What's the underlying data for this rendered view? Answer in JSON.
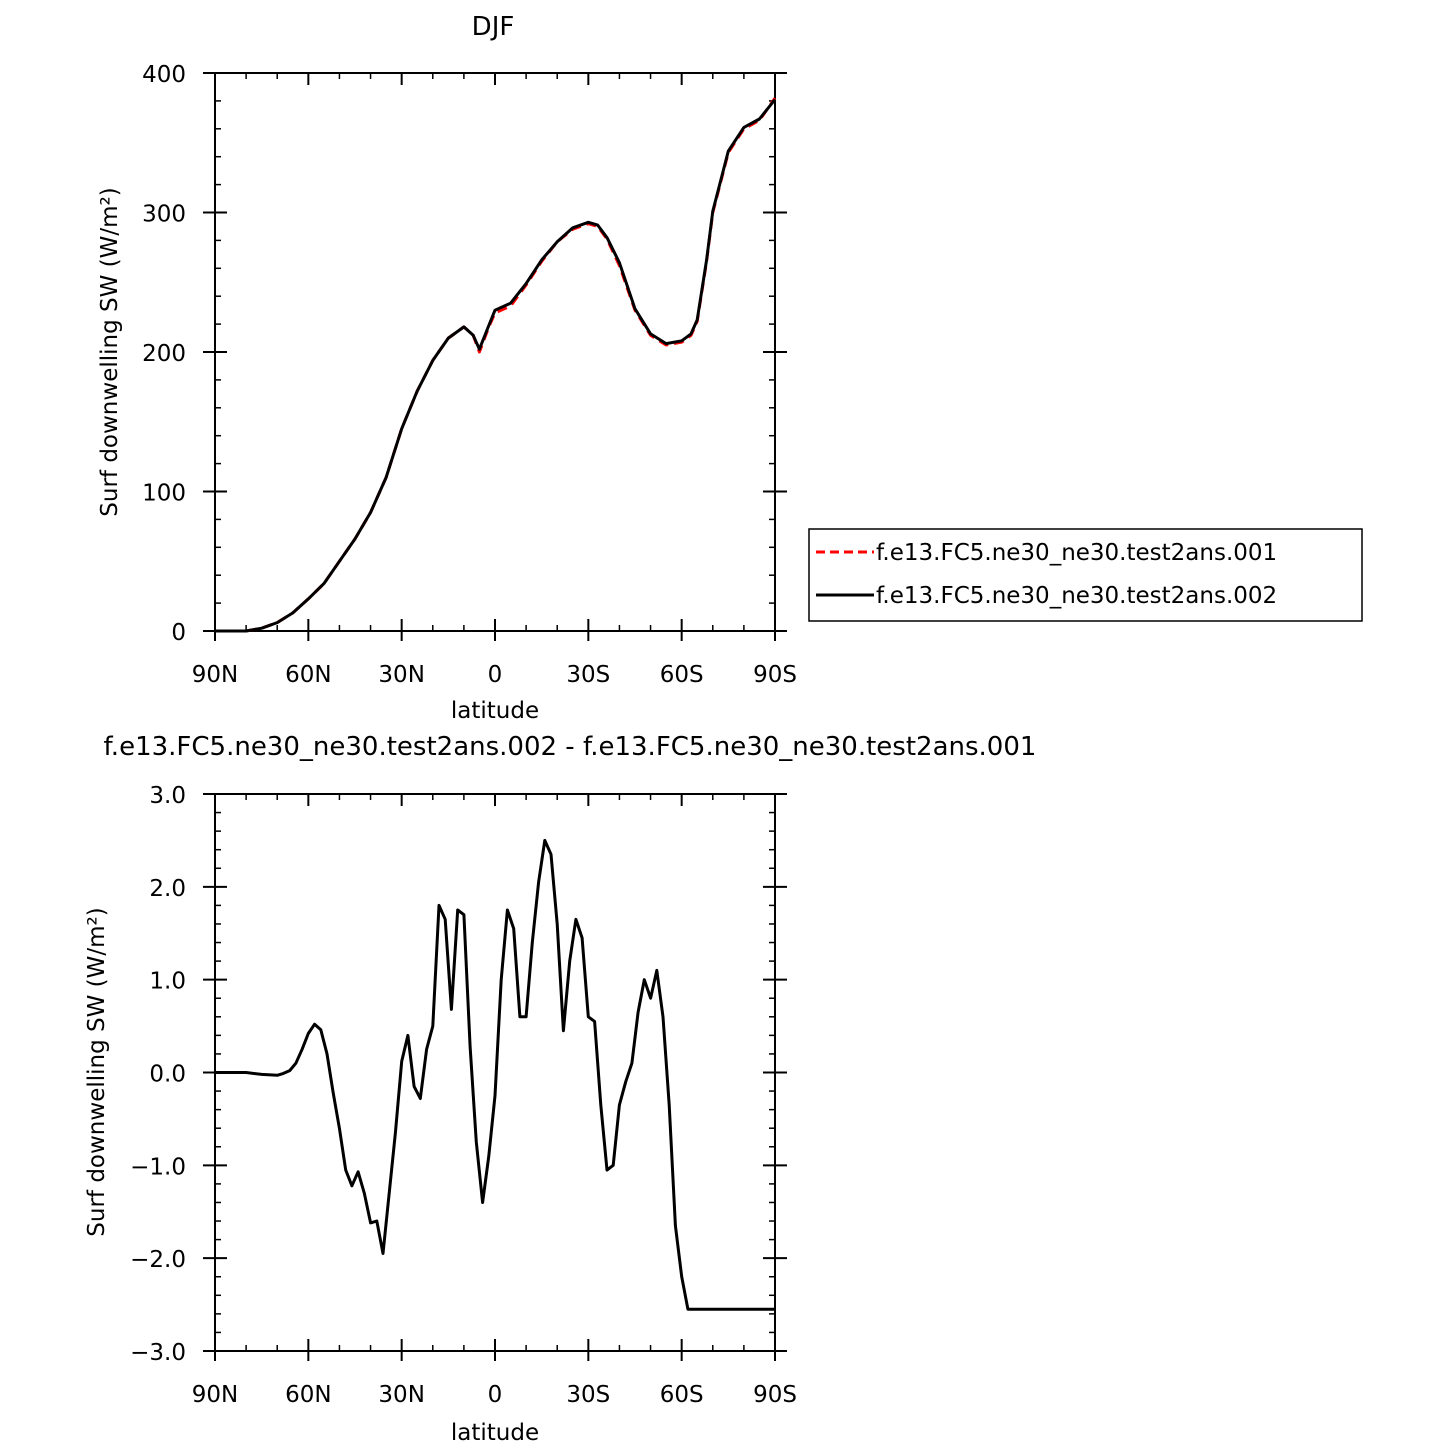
{
  "chart_data": [
    {
      "type": "line",
      "title": "DJF",
      "xlabel": "latitude",
      "ylabel": "Surf downwelling SW (W/m²)",
      "xlim": [
        -90,
        90
      ],
      "ylim": [
        0,
        400
      ],
      "x_ticks": [
        -90,
        -60,
        -30,
        0,
        30,
        60,
        90
      ],
      "x_tick_labels": [
        "90N",
        "60N",
        "30N",
        "0",
        "30S",
        "60S",
        "90S"
      ],
      "y_ticks": [
        0,
        100,
        200,
        300,
        400
      ],
      "y_tick_labels": [
        "0",
        "100",
        "200",
        "300",
        "400"
      ],
      "legend_position": "right-outside",
      "series": [
        {
          "name": "f.e13.FC5.ne30_ne30.test2ans.001",
          "color": "#ff0000",
          "dash": "dashed",
          "x": [
            -90,
            -85,
            -80,
            -75,
            -70,
            -65,
            -60,
            -55,
            -50,
            -45,
            -40,
            -35,
            -30,
            -25,
            -20,
            -15,
            -10,
            -7,
            -5,
            -2,
            0,
            5,
            10,
            15,
            20,
            25,
            30,
            33,
            36,
            40,
            45,
            50,
            55,
            60,
            63,
            65,
            68,
            70,
            75,
            80,
            85,
            90
          ],
          "y": [
            0,
            0,
            0,
            2,
            6,
            13,
            23,
            34,
            50,
            66,
            85,
            110,
            145,
            172,
            194,
            210,
            218,
            212,
            200,
            218,
            228,
            233,
            248,
            265,
            279,
            288,
            292,
            290,
            281,
            262,
            230,
            212,
            205,
            207,
            212,
            222,
            265,
            300,
            343,
            360,
            366,
            382
          ]
        },
        {
          "name": "f.e13.FC5.ne30_ne30.test2ans.002",
          "color": "#000000",
          "dash": "solid",
          "x": [
            -90,
            -85,
            -80,
            -75,
            -70,
            -65,
            -60,
            -55,
            -50,
            -45,
            -40,
            -35,
            -30,
            -25,
            -20,
            -15,
            -10,
            -7,
            -5,
            -2,
            0,
            5,
            10,
            15,
            20,
            25,
            30,
            33,
            36,
            40,
            45,
            50,
            55,
            60,
            63,
            65,
            68,
            70,
            75,
            80,
            85,
            90
          ],
          "y": [
            0,
            0,
            0,
            2,
            6,
            13,
            23,
            34,
            50,
            66,
            85,
            110,
            145,
            172,
            194,
            210,
            218,
            212,
            202,
            219,
            230,
            235,
            249,
            266,
            279,
            289,
            293,
            291,
            282,
            264,
            231,
            213,
            206,
            208,
            213,
            223,
            266,
            301,
            344,
            361,
            367,
            381
          ]
        }
      ]
    },
    {
      "type": "line",
      "title": "f.e13.FC5.ne30_ne30.test2ans.002 - f.e13.FC5.ne30_ne30.test2ans.001",
      "xlabel": "latitude",
      "ylabel": "Surf downwelling SW (W/m²)",
      "xlim": [
        -90,
        90
      ],
      "ylim": [
        -3.0,
        3.0
      ],
      "x_ticks": [
        -90,
        -60,
        -30,
        0,
        30,
        60,
        90
      ],
      "x_tick_labels": [
        "90N",
        "60N",
        "30N",
        "0",
        "30S",
        "60S",
        "90S"
      ],
      "y_ticks": [
        -3,
        -2,
        -1,
        0,
        1,
        2,
        3
      ],
      "y_tick_labels": [
        "−3.0",
        "−2.0",
        "−1.0",
        "0.0",
        "1.0",
        "2.0",
        "3.0"
      ],
      "series": [
        {
          "color": "#000000",
          "x": [
            -90,
            -80,
            -75,
            -70,
            -68,
            -66,
            -64,
            -62,
            -60,
            -58,
            -56,
            -54,
            -52,
            -50,
            -48,
            -46,
            -44,
            -42,
            -40,
            -38,
            -36,
            -34,
            -32,
            -30,
            -28,
            -26,
            -24,
            -22,
            -20,
            -18,
            -16,
            -14,
            -12,
            -10,
            -8,
            -6,
            -4,
            -2,
            0,
            2,
            4,
            6,
            8,
            10,
            12,
            14,
            16,
            18,
            20,
            22,
            24,
            26,
            28,
            30,
            32,
            34,
            36,
            38,
            40,
            42,
            44,
            46,
            48,
            50,
            52,
            54,
            56,
            58,
            60,
            62,
            64,
            66,
            68,
            70,
            72,
            74,
            76,
            78,
            80,
            82,
            84,
            86,
            88,
            90
          ],
          "y": [
            0,
            0,
            -0.02,
            -0.03,
            -0.01,
            0.02,
            0.1,
            0.25,
            0.42,
            0.52,
            0.46,
            0.2,
            -0.22,
            -0.6,
            -1.05,
            -1.22,
            -1.07,
            -1.3,
            -1.62,
            -1.6,
            -1.95,
            -1.3,
            -0.65,
            0.12,
            0.4,
            -0.15,
            -0.28,
            0.25,
            0.5,
            1.8,
            1.65,
            0.68,
            1.75,
            1.7,
            0.28,
            -0.75,
            -1.4,
            -0.9,
            -0.25,
            1.0,
            1.75,
            1.55,
            0.6,
            0.6,
            1.4,
            2.05,
            2.5,
            2.35,
            1.6,
            0.45,
            1.2,
            1.65,
            1.45,
            0.6,
            0.55,
            -0.35,
            -1.05,
            -1.0,
            -0.35,
            -0.1,
            0.1,
            0.65,
            1.0,
            0.8,
            1.1,
            0.6,
            -0.35,
            -1.65,
            -2.2,
            -2.55,
            -2.55,
            -2.55,
            -2.55,
            -2.55,
            -2.55,
            -2.55,
            -2.55,
            -2.55,
            -2.55,
            -2.55,
            -2.55,
            -2.55,
            -2.55,
            -2.55
          ]
        }
      ]
    }
  ]
}
